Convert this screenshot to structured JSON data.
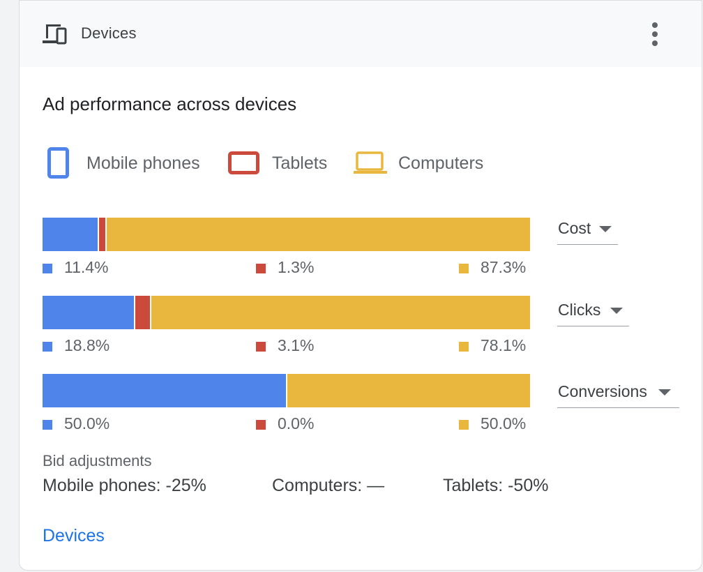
{
  "header": {
    "title": "Devices",
    "icon": "devices-icon",
    "menu_icon": "more-vert-icon"
  },
  "card": {
    "title": "Ad performance across devices"
  },
  "legend": [
    {
      "label": "Mobile phones",
      "icon": "mobile-phone-icon",
      "color": "#4f84ea"
    },
    {
      "label": "Tablets",
      "icon": "tablet-icon",
      "color": "#cc4a3c"
    },
    {
      "label": "Computers",
      "icon": "laptop-icon",
      "color": "#e9b73d"
    }
  ],
  "colors": {
    "mobile": "#4f84ea",
    "tablet": "#cc4a3c",
    "computer": "#e9b73d",
    "link": "#1a73e8"
  },
  "metrics": [
    {
      "select_label": "Cost",
      "mobile": "11.4%",
      "tablets": "1.3%",
      "computers": "87.3%"
    },
    {
      "select_label": "Clicks",
      "mobile": "18.8%",
      "tablets": "3.1%",
      "computers": "78.1%"
    },
    {
      "select_label": "Conversions",
      "mobile": "50.0%",
      "tablets": "0.0%",
      "computers": "50.0%"
    }
  ],
  "chart_data": {
    "type": "bar",
    "stacked": true,
    "orientation": "horizontal",
    "categories": [
      "Cost",
      "Clicks",
      "Conversions"
    ],
    "series": [
      {
        "name": "Mobile phones",
        "values": [
          11.4,
          18.8,
          50.0
        ]
      },
      {
        "name": "Tablets",
        "values": [
          1.3,
          3.1,
          0.0
        ]
      },
      {
        "name": "Computers",
        "values": [
          87.3,
          78.1,
          50.0
        ]
      }
    ],
    "xlim": [
      0,
      100
    ]
  },
  "bid_adjustments": {
    "heading": "Bid adjustments",
    "mobile": "Mobile phones: -25%",
    "computers": "Computers: —",
    "tablets": "Tablets: -50%"
  },
  "link": {
    "label": "Devices"
  }
}
